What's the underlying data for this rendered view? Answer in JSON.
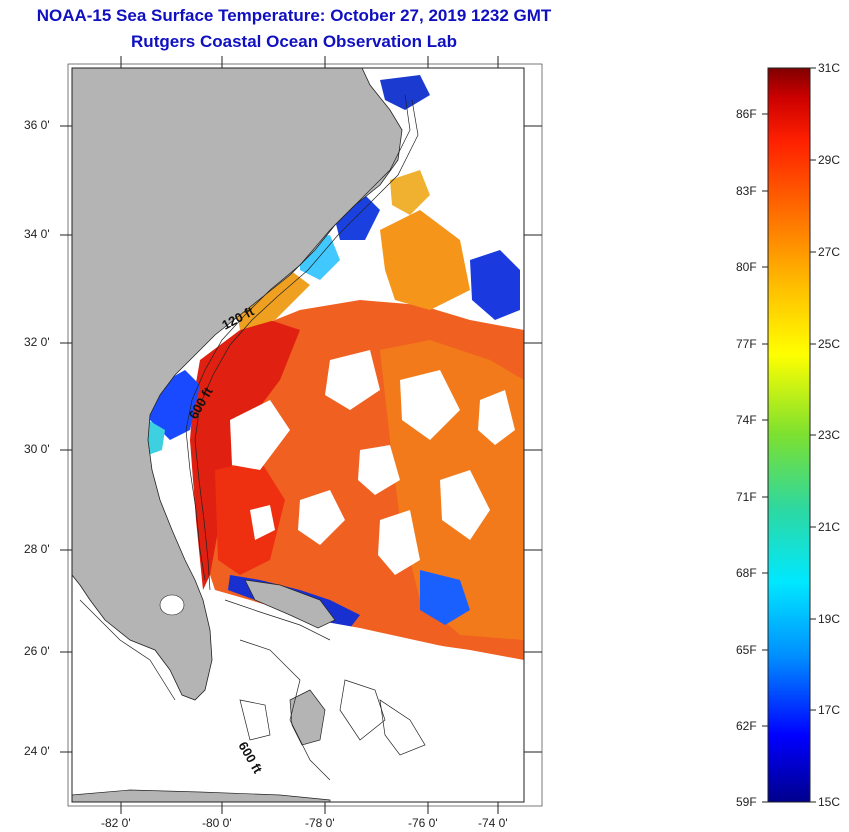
{
  "header": {
    "title_line1": "NOAA-15 Sea Surface Temperature:  October 27, 2019 1232 GMT",
    "title_line2": "Rutgers Coastal Ocean Observation Lab"
  },
  "map": {
    "lat_ticks": [
      "36 0'",
      "34 0'",
      "32 0'",
      "30 0'",
      "28 0'",
      "26 0'",
      "24 0'"
    ],
    "lon_ticks": [
      "-82 0'",
      "-80 0'",
      "-78 0'",
      "-76 0'",
      "-74 0'"
    ],
    "contour_labels": {
      "c120_north": "120 ft",
      "c600_north": "600 ft",
      "c600_south": "600 ft"
    },
    "colors": {
      "land": "#b4b4b4",
      "no_data": "#ffffff"
    }
  },
  "colorbar": {
    "celsius_labels": [
      "31C",
      "29C",
      "27C",
      "25C",
      "23C",
      "21C",
      "19C",
      "17C",
      "15C"
    ],
    "fahrenheit_labels": [
      "86F",
      "83F",
      "80F",
      "77F",
      "74F",
      "71F",
      "68F",
      "65F",
      "62F",
      "59F"
    ],
    "range_c": [
      15,
      31
    ],
    "gradient": [
      "#00008c",
      "#0000ff",
      "#0090ff",
      "#00e8ff",
      "#2ed8a0",
      "#7ce030",
      "#ffff00",
      "#ffc000",
      "#ff7000",
      "#ff2000",
      "#cc0000",
      "#800000"
    ]
  }
}
